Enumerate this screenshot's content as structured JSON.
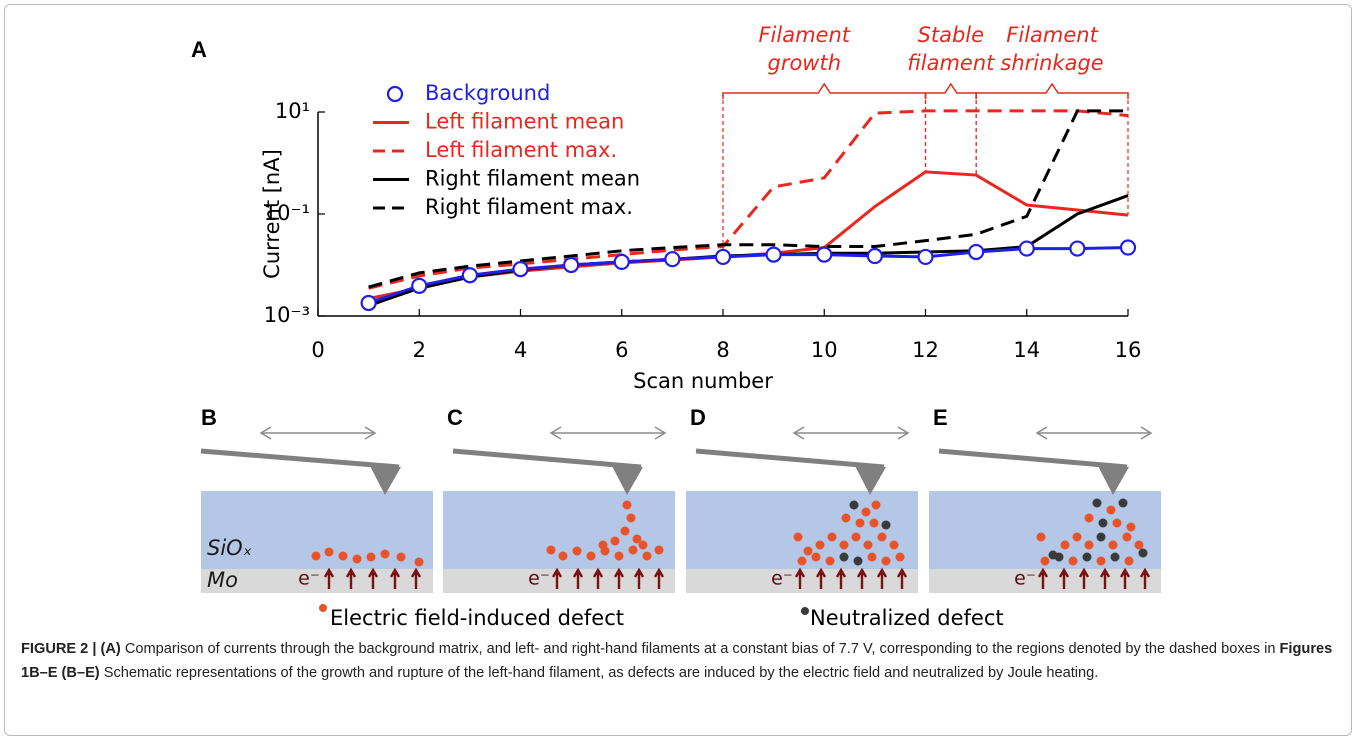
{
  "panel_a_label": "A",
  "chart_data": {
    "type": "line",
    "x_label": "Scan number",
    "y_label": "Current [nA]",
    "log_y": true,
    "x": [
      1,
      2,
      3,
      4,
      5,
      6,
      7,
      8,
      9,
      10,
      11,
      12,
      13,
      14,
      15,
      16
    ],
    "xlim": [
      0,
      16
    ],
    "xticks": [
      0,
      2,
      4,
      6,
      8,
      10,
      12,
      14,
      16
    ],
    "ylim": [
      0.001,
      10
    ],
    "yticks": [
      {
        "value": 0.001,
        "label": "10⁻³"
      },
      {
        "value": 0.1,
        "label": "10⁻¹"
      },
      {
        "value": 10,
        "label": "10¹"
      }
    ],
    "series": [
      {
        "name": "Background",
        "color": "#1f1fe6",
        "style": "line-markers",
        "values": [
          0.0018,
          0.0039,
          0.0063,
          0.0083,
          0.01,
          0.0115,
          0.013,
          0.0144,
          0.016,
          0.016,
          0.015,
          0.0144,
          0.018,
          0.021,
          0.021,
          0.022
        ]
      },
      {
        "name": "Left filament mean",
        "color": "#e8281e",
        "style": "solid",
        "values": [
          0.0022,
          0.0035,
          0.0058,
          0.0076,
          0.0092,
          0.011,
          0.0125,
          0.0144,
          0.017,
          0.022,
          0.14,
          0.67,
          0.58,
          0.15,
          0.12,
          0.095
        ]
      },
      {
        "name": "Left filament max.",
        "color": "#e8281e",
        "style": "dashed",
        "values": [
          0.0035,
          0.0061,
          0.0087,
          0.0105,
          0.013,
          0.016,
          0.0197,
          0.023,
          0.34,
          0.51,
          9.5,
          10.5,
          10.5,
          10.5,
          10.5,
          8.5
        ]
      },
      {
        "name": "Right filament mean",
        "color": "#000000",
        "style": "solid",
        "values": [
          0.0016,
          0.0035,
          0.0058,
          0.008,
          0.01,
          0.0115,
          0.013,
          0.015,
          0.016,
          0.017,
          0.017,
          0.018,
          0.019,
          0.023,
          0.1,
          0.23
        ]
      },
      {
        "name": "Right filament max.",
        "color": "#000000",
        "style": "dashed",
        "values": [
          0.0037,
          0.007,
          0.0095,
          0.012,
          0.015,
          0.019,
          0.022,
          0.025,
          0.025,
          0.023,
          0.023,
          0.03,
          0.04,
          0.09,
          10.5,
          10.5
        ]
      }
    ],
    "regions": [
      {
        "label": [
          "Filament",
          "growth"
        ],
        "x": [
          8,
          12
        ]
      },
      {
        "label": [
          "Stable",
          "filament"
        ],
        "x": [
          12,
          13
        ]
      },
      {
        "label": [
          "Filament",
          "shrinkage"
        ],
        "x": [
          13,
          16
        ]
      }
    ],
    "region_color": "#e8281e"
  },
  "schematics": {
    "panels": [
      "B",
      "C",
      "D",
      "E"
    ],
    "oxide": "SiOₓ",
    "metal": "Mo",
    "electron": "e⁻",
    "legend": [
      "Electric field-induced defect",
      "Neutralized defect"
    ]
  },
  "caption": [
    "FIGURE 2 | (A)",
    " Comparison of currents through the background matrix, and left- and right-hand filaments at a constant bias of 7.7 V, corresponding to the regions denoted by the dashed boxes in ",
    "Figures 1B–E (B–E)",
    " Schematic representations of the growth and rupture of the left-hand filament, as defects are induced by the electric field and neutralized by Joule heating."
  ]
}
